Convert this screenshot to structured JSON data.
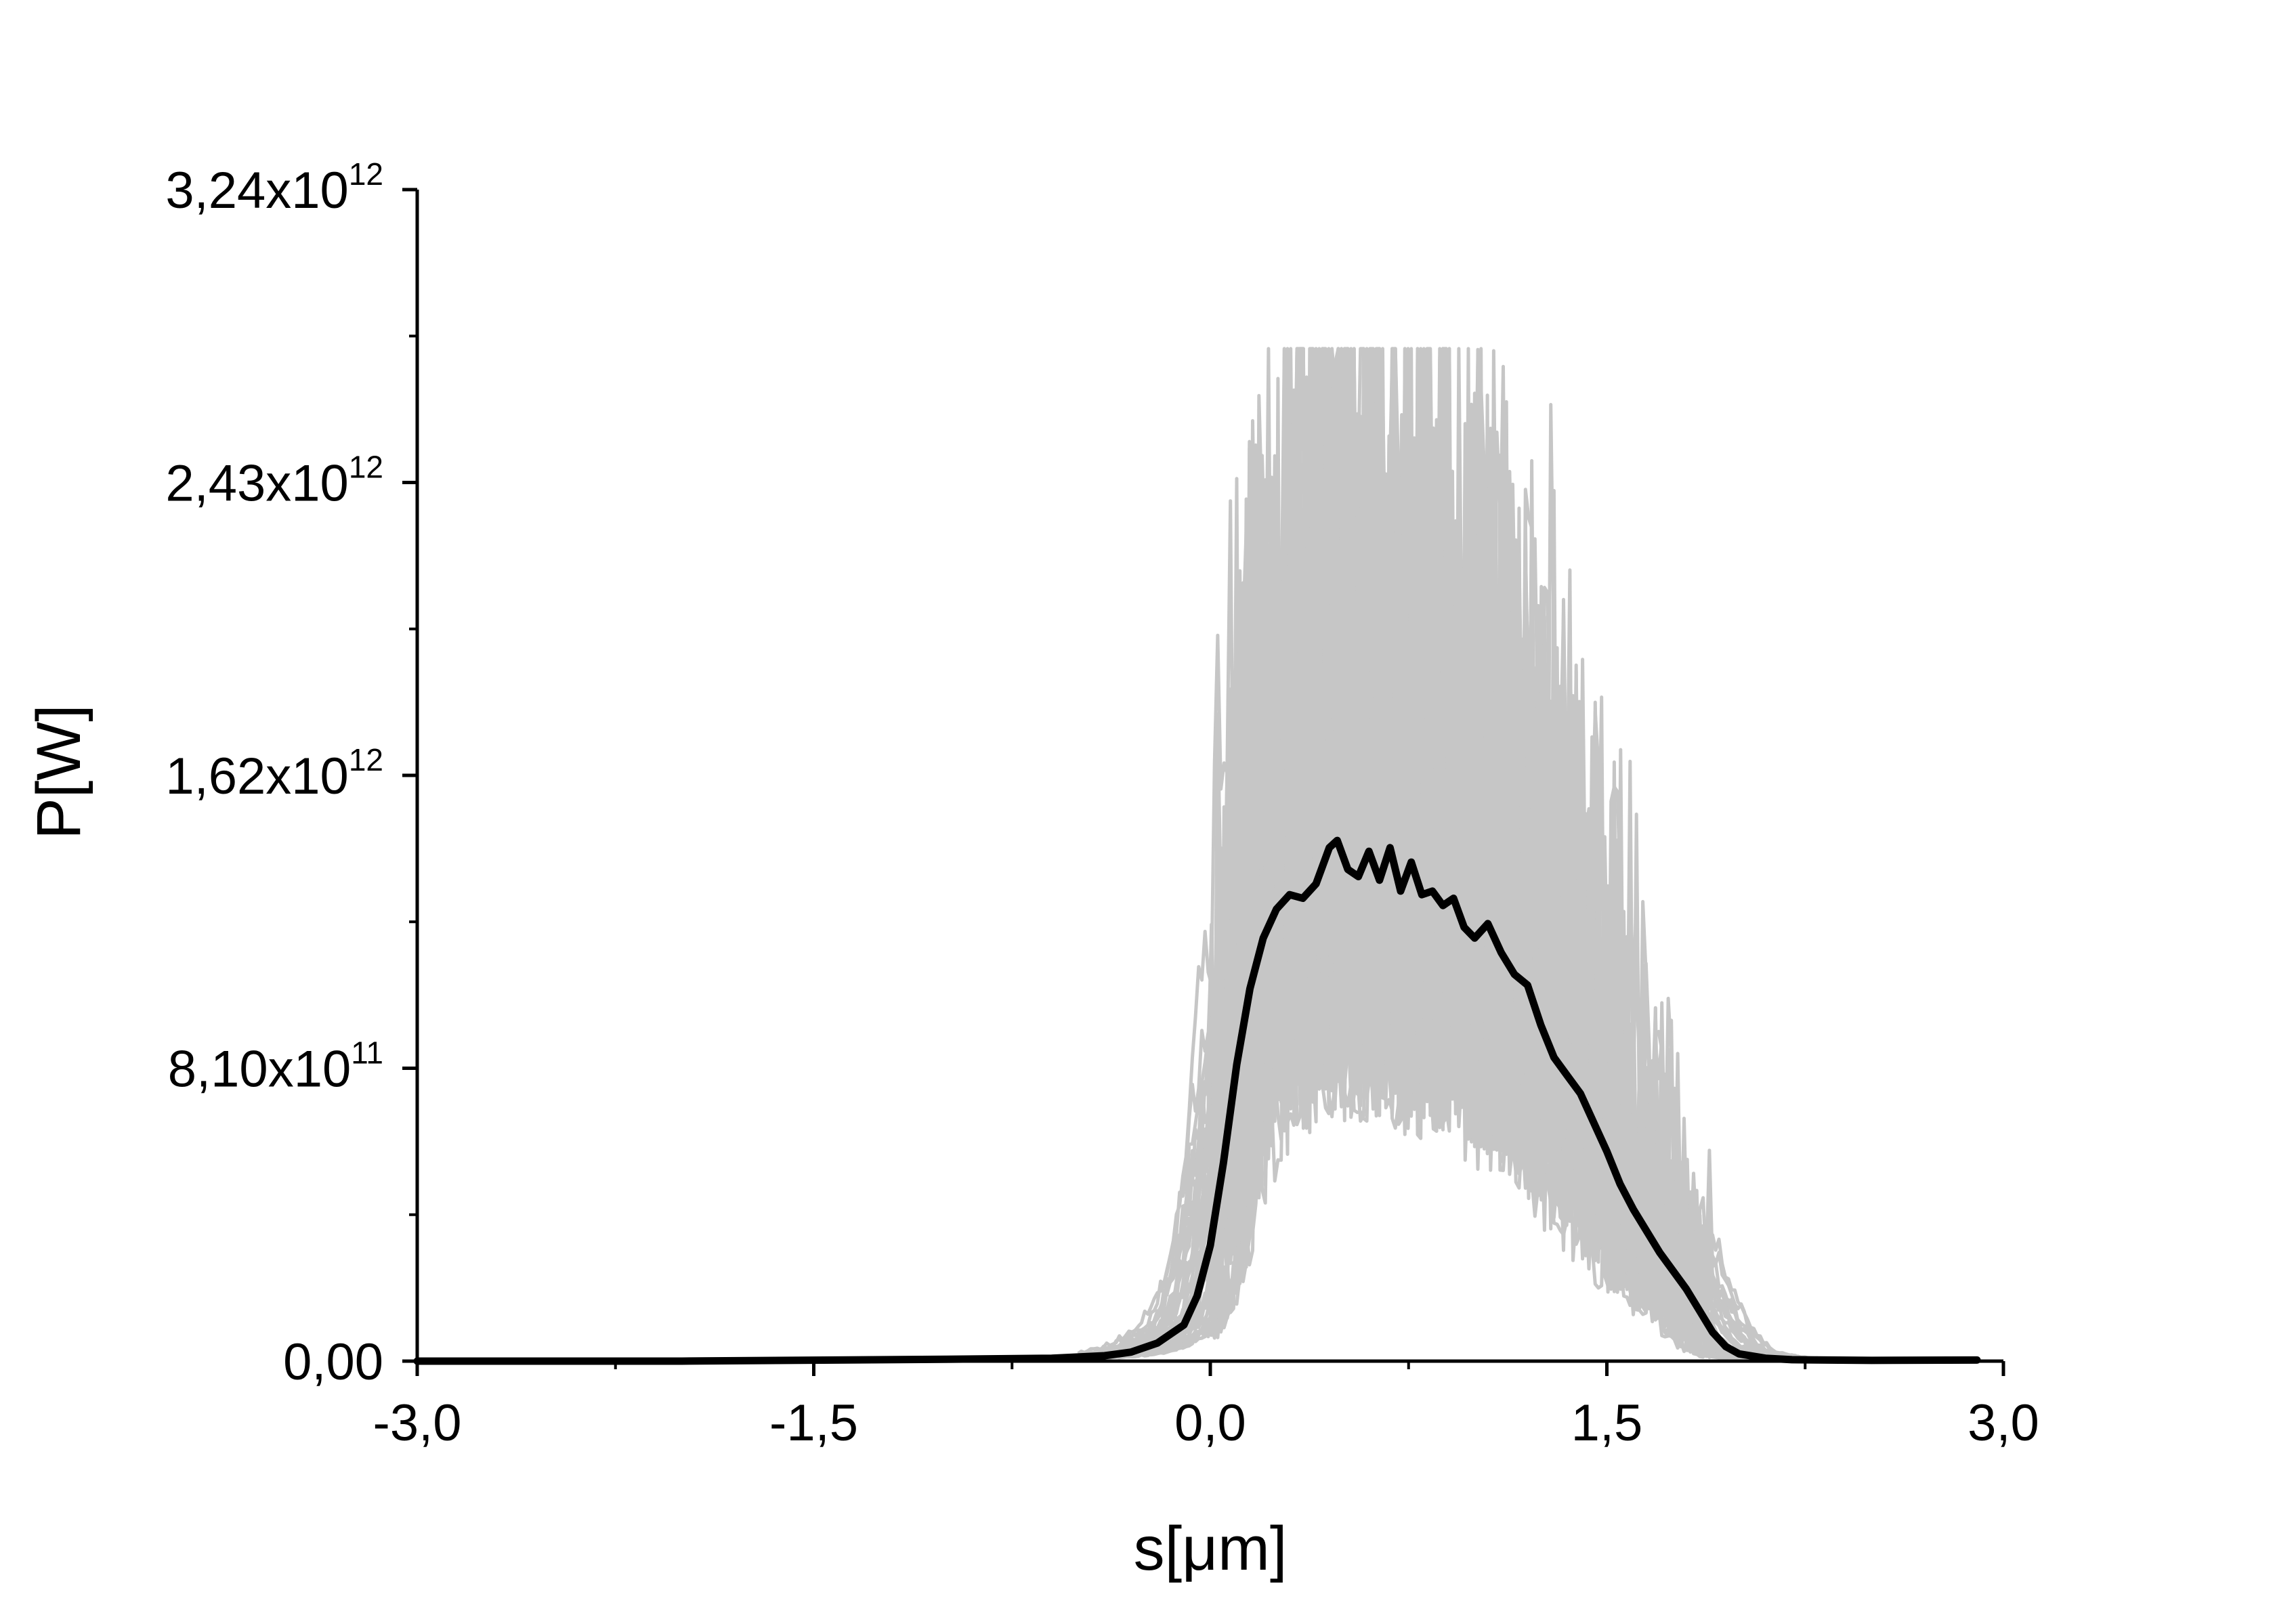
{
  "chart_data": {
    "type": "line",
    "title": "",
    "xlabel": "s[μm]",
    "ylabel": "P[W]",
    "xlim": [
      -3.0,
      3.0
    ],
    "ylim": [
      0,
      3240000000000.0
    ],
    "x_ticks": [
      {
        "value": -3.0,
        "label": "-3,0"
      },
      {
        "value": -1.5,
        "label": "-1,5"
      },
      {
        "value": 0.0,
        "label": "0,0"
      },
      {
        "value": 1.5,
        "label": "1,5"
      },
      {
        "value": 3.0,
        "label": "3,0"
      }
    ],
    "y_ticks": [
      {
        "value": 0,
        "mantissa": "0,00",
        "exp": ""
      },
      {
        "value": 810000000000.0,
        "mantissa": "8,10x10",
        "exp": "11"
      },
      {
        "value": 1620000000000.0,
        "mantissa": "1,62x10",
        "exp": "12"
      },
      {
        "value": 2430000000000.0,
        "mantissa": "2,43x10",
        "exp": "12"
      },
      {
        "value": 3240000000000.0,
        "mantissa": "3,24x10",
        "exp": "12"
      }
    ],
    "grid": false,
    "colors": {
      "ensemble": "#c6c6c6",
      "mean": "#000000",
      "axis": "#000000"
    },
    "series": [
      {
        "style": "thick-black",
        "x": [
          -3.0,
          -2.0,
          -1.0,
          -0.6,
          -0.4,
          -0.3,
          -0.2,
          -0.1,
          -0.05,
          0.0,
          0.05,
          0.1,
          0.15,
          0.2,
          0.25,
          0.3,
          0.35,
          0.4,
          0.45,
          0.48,
          0.52,
          0.56,
          0.6,
          0.64,
          0.68,
          0.72,
          0.76,
          0.8,
          0.84,
          0.88,
          0.92,
          0.96,
          1.0,
          1.05,
          1.1,
          1.15,
          1.2,
          1.25,
          1.3,
          1.35,
          1.4,
          1.45,
          1.5,
          1.55,
          1.6,
          1.7,
          1.8,
          1.85,
          1.9,
          1.95,
          2.0,
          2.1,
          2.2,
          2.5,
          2.9
        ],
        "y": [
          0,
          0,
          5000000000.0,
          8000000000.0,
          15000000000.0,
          25000000000.0,
          50000000000.0,
          100000000000.0,
          180000000000.0,
          320000000000.0,
          550000000000.0,
          820000000000.0,
          1030000000000.0,
          1170000000000.0,
          1250000000000.0,
          1290000000000.0,
          1280000000000.0,
          1320000000000.0,
          1420000000000.0,
          1440000000000.0,
          1360000000000.0,
          1340000000000.0,
          1410000000000.0,
          1330000000000.0,
          1420000000000.0,
          1300000000000.0,
          1380000000000.0,
          1290000000000.0,
          1300000000000.0,
          1260000000000.0,
          1280000000000.0,
          1200000000000.0,
          1170000000000.0,
          1210000000000.0,
          1130000000000.0,
          1070000000000.0,
          1040000000000.0,
          930000000000.0,
          840000000000.0,
          790000000000.0,
          740000000000.0,
          660000000000.0,
          580000000000.0,
          490000000000.0,
          420000000000.0,
          300000000000.0,
          200000000000.0,
          140000000000.0,
          80000000000.0,
          40000000000.0,
          20000000000.0,
          8000000000.0,
          4000000000.0,
          2000000000.0,
          3000000000.0
        ]
      }
    ]
  }
}
